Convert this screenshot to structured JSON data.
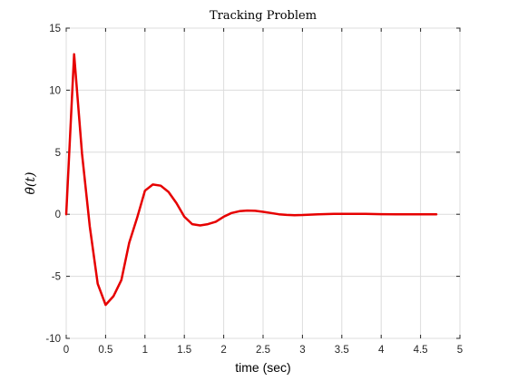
{
  "chart_data": {
    "type": "line",
    "title": "Tracking Problem",
    "xlabel": "time (sec)",
    "ylabel": "θ̇(t)",
    "xlim": [
      0,
      5
    ],
    "ylim": [
      -10,
      15
    ],
    "xticks": [
      0,
      0.5,
      1,
      1.5,
      2,
      2.5,
      3,
      3.5,
      4,
      4.5,
      5
    ],
    "xtick_labels": [
      "0",
      "0.5",
      "1",
      "1.5",
      "2",
      "2.5",
      "3",
      "3.5",
      "4",
      "4.5",
      "5"
    ],
    "yticks": [
      -10,
      -5,
      0,
      5,
      10,
      15
    ],
    "ytick_labels": [
      "-10",
      "-5",
      "0",
      "5",
      "10",
      "15"
    ],
    "grid": true,
    "series": [
      {
        "color": "#e60000",
        "x": [
          0,
          0.1,
          0.2,
          0.3,
          0.4,
          0.5,
          0.6,
          0.7,
          0.8,
          0.9,
          1.0,
          1.1,
          1.2,
          1.3,
          1.4,
          1.5,
          1.6,
          1.7,
          1.8,
          1.9,
          2.0,
          2.1,
          2.2,
          2.3,
          2.4,
          2.5,
          2.6,
          2.7,
          2.8,
          2.9,
          3.0,
          3.2,
          3.4,
          3.6,
          3.8,
          4.0,
          4.2,
          4.4,
          4.6,
          4.7
        ],
        "y": [
          0,
          12.9,
          4.9,
          -1.0,
          -5.6,
          -7.3,
          -6.6,
          -5.3,
          -2.3,
          -0.3,
          1.9,
          2.4,
          2.3,
          1.8,
          0.9,
          -0.2,
          -0.8,
          -0.9,
          -0.8,
          -0.6,
          -0.2,
          0.1,
          0.25,
          0.3,
          0.28,
          0.2,
          0.1,
          0.0,
          -0.05,
          -0.07,
          -0.06,
          0.0,
          0.03,
          0.04,
          0.03,
          0.01,
          0.0,
          0.0,
          0.0,
          0.0
        ]
      }
    ]
  }
}
